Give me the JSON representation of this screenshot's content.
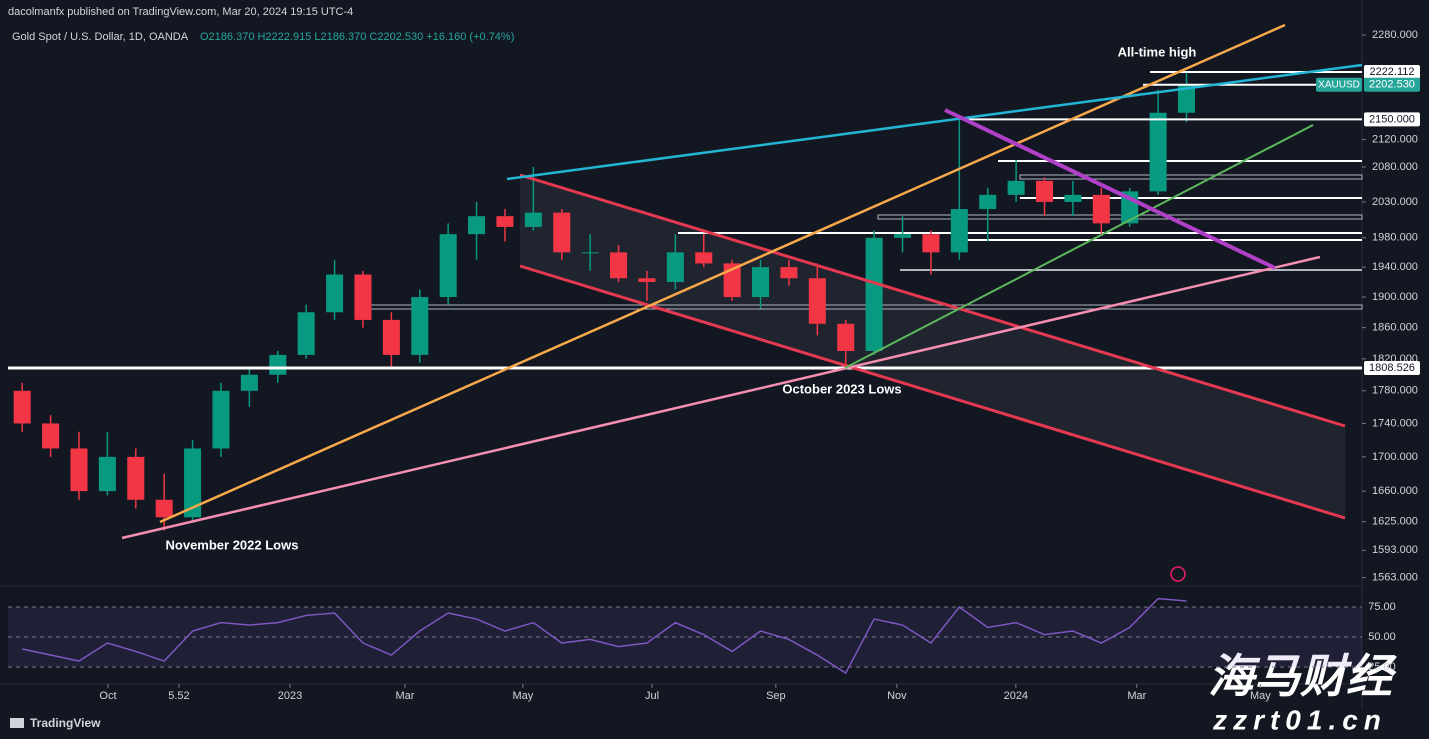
{
  "header": {
    "publisher": "dacolmanfx published on TradingView.com, Mar 20, 2024 19:15 UTC-4",
    "symbol": "Gold Spot / U.S. Dollar, 1D, OANDA",
    "ohlc": "O2186.370 H2222.915 L2186.370 C2202.530 +16.160 (+0.74%)",
    "brand": "TradingView",
    "watermark": "海马财经",
    "watermark_url": "zzrt01.cn"
  },
  "chart_data": [
    {
      "type": "candlestick",
      "annotations": [
        "All-time high",
        "November 2022 Lows",
        "October 2023 Lows"
      ],
      "categories": [
        null,
        null,
        null,
        null,
        null,
        null,
        null,
        null,
        null,
        null,
        null,
        null,
        null,
        null,
        null,
        null,
        null,
        null,
        null,
        null,
        null,
        null,
        null,
        null,
        null,
        null,
        null,
        null,
        null,
        null,
        null,
        null,
        null,
        null,
        null,
        null,
        null,
        null,
        null,
        null,
        null,
        null
      ],
      "open": [
        1780,
        1740,
        1710,
        1660,
        1700,
        1650,
        1630,
        1710,
        1780,
        1800,
        1825,
        1880,
        1930,
        1870,
        1825,
        1900,
        1985,
        2010,
        1995,
        2015,
        1960,
        1960,
        1925,
        1920,
        1960,
        1945,
        1900,
        1940,
        1925,
        1865,
        1830,
        1980,
        1985,
        1960,
        2020,
        2040,
        2060,
        2030,
        2040,
        2000,
        2045,
        2160
      ],
      "high": [
        1790,
        1750,
        1730,
        1730,
        1710,
        1680,
        1720,
        1790,
        1810,
        1830,
        1890,
        1950,
        1935,
        1880,
        1910,
        2000,
        2030,
        2020,
        2080,
        2020,
        1985,
        1970,
        1935,
        1985,
        1985,
        1950,
        1950,
        1950,
        1945,
        1870,
        1990,
        2010,
        1990,
        2150,
        2050,
        2090,
        2065,
        2060,
        2050,
        2050,
        2195,
        2222.915
      ],
      "low": [
        1730,
        1700,
        1650,
        1655,
        1640,
        1615,
        1625,
        1700,
        1760,
        1790,
        1820,
        1870,
        1860,
        1810,
        1815,
        1890,
        1950,
        1975,
        1990,
        1950,
        1935,
        1920,
        1895,
        1910,
        1940,
        1895,
        1885,
        1915,
        1850,
        1810,
        1825,
        1960,
        1930,
        1950,
        1975,
        2030,
        2010,
        2010,
        1985,
        1995,
        2040,
        2146
      ],
      "close": [
        1740,
        1710,
        1660,
        1700,
        1650,
        1630,
        1710,
        1780,
        1800,
        1825,
        1880,
        1930,
        1870,
        1825,
        1900,
        1985,
        2010,
        1995,
        2015,
        1960,
        1960,
        1925,
        1920,
        1960,
        1945,
        1900,
        1940,
        1925,
        1865,
        1830,
        1980,
        1985,
        1960,
        2020,
        2040,
        2060,
        2030,
        2040,
        2000,
        2045,
        2160,
        2202.53
      ],
      "up_color": "#089981",
      "down_color": "#f23645",
      "log_scale": true,
      "xlim": [
        -0.5,
        47.18
      ],
      "ylim": [
        1555,
        2296
      ],
      "yticks": [
        {
          "value": 2280,
          "label": "2280.000"
        },
        {
          "value": 2120,
          "label": "2120.000"
        },
        {
          "value": 2080,
          "label": "2080.000"
        },
        {
          "value": 2030,
          "label": "2030.000"
        },
        {
          "value": 1980,
          "label": "1980.000"
        },
        {
          "value": 1940,
          "label": "1940.000"
        },
        {
          "value": 1900,
          "label": "1900.000"
        },
        {
          "value": 1860,
          "label": "1860.000"
        },
        {
          "value": 1820,
          "label": "1820.000"
        },
        {
          "value": 1780,
          "label": "1780.000"
        },
        {
          "value": 1740,
          "label": "1740.000"
        },
        {
          "value": 1700,
          "label": "1700.000"
        },
        {
          "value": 1660,
          "label": "1660.000"
        },
        {
          "value": 1625,
          "label": "1625.000"
        },
        {
          "value": 1593,
          "label": "1593.000"
        },
        {
          "value": 1563,
          "label": "1563.000"
        }
      ],
      "levels": [
        2222.112,
        {
          "value": 2150,
          "label": "2150.000"
        },
        1808.526
      ],
      "last": {
        "name": "XAUUSD",
        "value": 2202.53,
        "label": "2202.530",
        "color": "#26a69a"
      }
    },
    {
      "type": "line",
      "categories": [
        null,
        null,
        null,
        null,
        null,
        null,
        null,
        null,
        null,
        null,
        null,
        null,
        null,
        null,
        null,
        null,
        null,
        null,
        null,
        null,
        null,
        null,
        null,
        null,
        null,
        null,
        null,
        null,
        null,
        null,
        null,
        null,
        null,
        null,
        null,
        null,
        null,
        null,
        null,
        null,
        null,
        null
      ],
      "values": [
        40,
        35,
        30,
        45,
        38,
        30,
        55,
        62,
        60,
        62,
        68,
        70,
        45,
        35,
        55,
        70,
        65,
        55,
        62,
        45,
        48,
        42,
        45,
        62,
        52,
        38,
        55,
        48,
        35,
        20,
        65,
        60,
        45,
        75,
        58,
        62,
        52,
        55,
        45,
        58,
        82,
        80
      ],
      "color": "#7e57c2",
      "xlim": [
        -0.5,
        47.18
      ],
      "xticks": [
        {
          "value": 3.02,
          "label": "Oct"
        },
        5.52,
        {
          "value": 9.43,
          "label": "2023"
        },
        {
          "value": 13.48,
          "label": "Mar"
        },
        {
          "value": 17.63,
          "label": "May"
        },
        {
          "value": 22.18,
          "label": "Jul"
        },
        {
          "value": 26.54,
          "label": "Sep"
        },
        {
          "value": 30.8,
          "label": "Nov"
        },
        {
          "value": 34.99,
          "label": "2024"
        },
        {
          "value": 39.25,
          "label": "Mar"
        },
        {
          "value": 43.6,
          "label": "May"
        }
      ],
      "ylim": [
        11.7,
        91.7
      ],
      "yticks": [
        {
          "value": 75,
          "label": "75.00"
        },
        {
          "value": 50,
          "label": "50.00"
        },
        {
          "value": 25,
          "label": "25.00"
        }
      ]
    }
  ]
}
